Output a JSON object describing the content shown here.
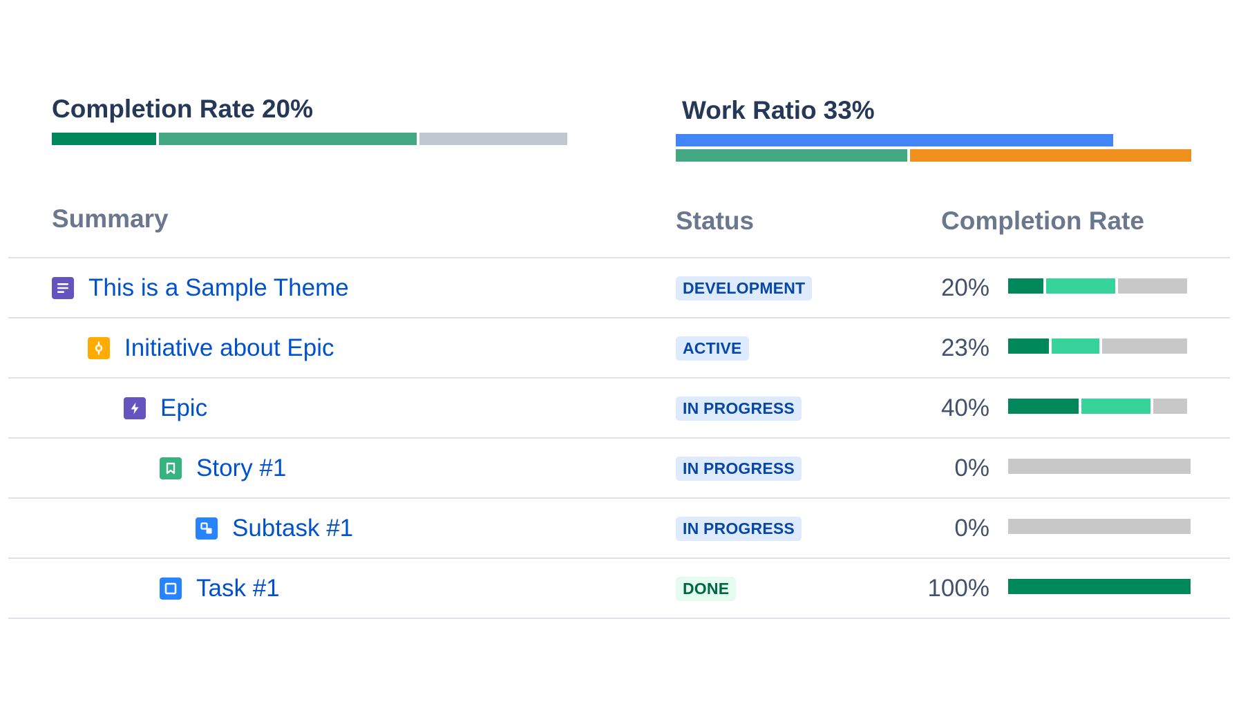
{
  "completion_widget": {
    "label": "Completion Rate",
    "value": "20%",
    "segments": [
      {
        "share": 0.204,
        "color": "#00875a"
      },
      {
        "share": 0.506,
        "color": "#43a882"
      },
      {
        "share": 0.29,
        "color": "#c1c7d0"
      }
    ]
  },
  "work_ratio_widget": {
    "label": "Work Ratio",
    "value": "33%",
    "bars": [
      {
        "name": "blue",
        "segments": [
          {
            "share": 0.849,
            "color": "#4285f4"
          }
        ]
      },
      {
        "name": "split",
        "segments": [
          {
            "share": 0.452,
            "color": "#43a882"
          },
          {
            "share": 0.548,
            "color": "#f18f1c"
          }
        ]
      }
    ]
  },
  "table": {
    "headers": {
      "summary": "Summary",
      "status": "Status",
      "completion": "Completion Rate"
    },
    "rows": [
      {
        "title": "This is a Sample Theme",
        "level": 0,
        "icon": "theme-icon",
        "icon_color": "#6554c0",
        "status": "DEVELOPMENT",
        "status_bg": "#deebff",
        "status_color": "#0747a6",
        "completion": "20%",
        "bar": [
          {
            "share": 0.2,
            "color": "#00875a"
          },
          {
            "share": 0.39,
            "color": "#36d39a"
          },
          {
            "share": 0.39,
            "color": "#c8c8c8"
          }
        ]
      },
      {
        "title": "Initiative about Epic",
        "level": 1,
        "icon": "initiative-icon",
        "icon_color": "#ffab00",
        "status": "ACTIVE",
        "status_bg": "#deebff",
        "status_color": "#0747a6",
        "completion": "23%",
        "bar": [
          {
            "share": 0.23,
            "color": "#00875a"
          },
          {
            "share": 0.27,
            "color": "#36d39a"
          },
          {
            "share": 0.48,
            "color": "#c8c8c8"
          }
        ]
      },
      {
        "title": "Epic",
        "level": 2,
        "icon": "epic-icon",
        "icon_color": "#6554c0",
        "status": "IN PROGRESS",
        "status_bg": "#deebff",
        "status_color": "#0747a6",
        "completion": "40%",
        "bar": [
          {
            "share": 0.4,
            "color": "#00875a"
          },
          {
            "share": 0.39,
            "color": "#36d39a"
          },
          {
            "share": 0.19,
            "color": "#c8c8c8"
          }
        ]
      },
      {
        "title": "Story #1",
        "level": 3,
        "icon": "story-icon",
        "icon_color": "#36b37e",
        "status": "IN PROGRESS",
        "status_bg": "#deebff",
        "status_color": "#0747a6",
        "completion": "0%",
        "bar": [
          {
            "share": 1.0,
            "color": "#c8c8c8"
          }
        ]
      },
      {
        "title": "Subtask #1",
        "level": 4,
        "icon": "subtask-icon",
        "icon_color": "#2684ff",
        "status": "IN PROGRESS",
        "status_bg": "#deebff",
        "status_color": "#0747a6",
        "completion": "0%",
        "bar": [
          {
            "share": 1.0,
            "color": "#c8c8c8"
          }
        ]
      },
      {
        "title": "Task #1",
        "level": 3,
        "icon": "task-icon",
        "icon_color": "#2684ff",
        "status": "DONE",
        "status_bg": "#e3fcef",
        "status_color": "#006644",
        "completion": "100%",
        "bar": [
          {
            "share": 1.0,
            "color": "#00875a"
          }
        ]
      }
    ]
  }
}
